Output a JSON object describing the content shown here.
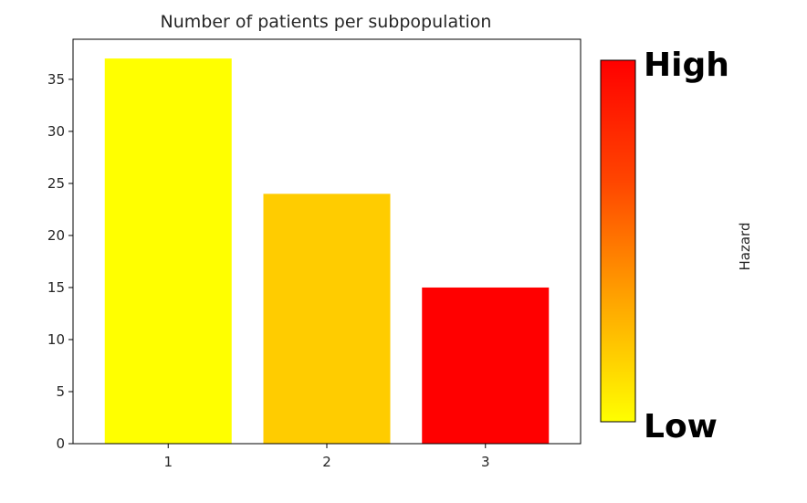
{
  "chart_data": {
    "type": "bar",
    "title": "Number of patients per subpopulation",
    "categories": [
      "1",
      "2",
      "3"
    ],
    "values": [
      37,
      24,
      15
    ],
    "bar_colors": [
      "#ffff00",
      "#ffcc00",
      "#ff0000"
    ],
    "ylim": [
      0,
      38.85
    ],
    "yticks": [
      0,
      5,
      10,
      15,
      20,
      25,
      30,
      35
    ],
    "xlabel": "",
    "ylabel": "",
    "grid": false,
    "colorbar": {
      "label": "Hazard",
      "high_label": "High",
      "low_label": "Low",
      "colors": [
        "#ffff00",
        "#ffa500",
        "#ff4500",
        "#ff0000"
      ]
    }
  }
}
